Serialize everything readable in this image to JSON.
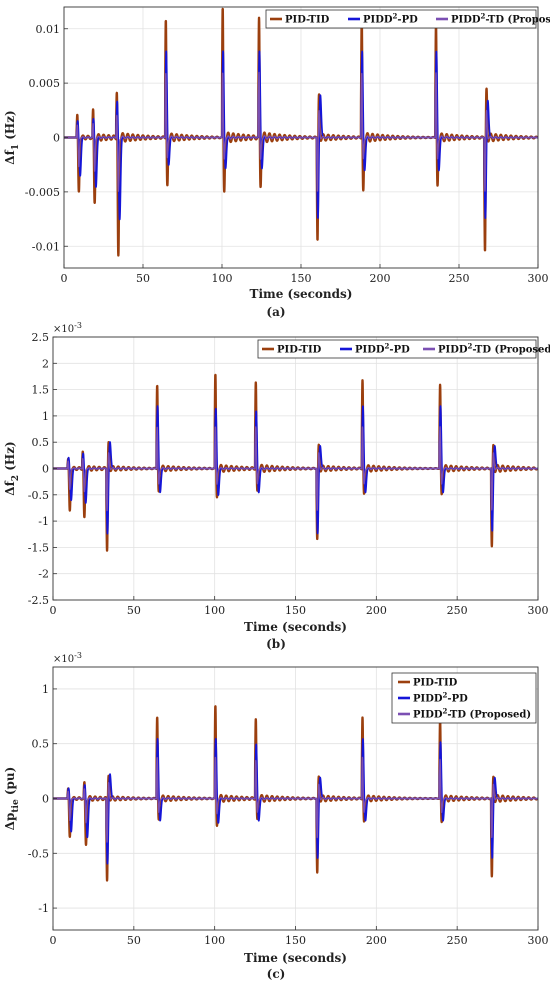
{
  "colors": {
    "PID-TID": "#9b3f0e",
    "PIDD2-PD": "#1515d8",
    "PIDD2-TD": "#7b4fb3"
  },
  "chart_data": [
    {
      "type": "line",
      "caption": "(a)",
      "xlabel": "Time (seconds)",
      "ylabel_main": "Δf",
      "ylabel_sub": "1",
      "ylabel_unit": " (Hz)",
      "exponent_label": "",
      "xlim": [
        0,
        300
      ],
      "ylim": [
        -0.012,
        0.012
      ],
      "xticks": [
        0,
        50,
        100,
        150,
        200,
        250,
        300
      ],
      "yticks": [
        -0.01,
        -0.005,
        0,
        0.005,
        0.01
      ],
      "ytick_labels": [
        "-0.01",
        "-0.005",
        "0",
        "0.005",
        "0.01"
      ],
      "legend": {
        "placement": "top-right-row",
        "entries": [
          {
            "key": "PID-TID",
            "text": "PID-TID",
            "sup": "",
            "rest": ""
          },
          {
            "key": "PIDD2-PD",
            "text": "PIDD",
            "sup": "2",
            "rest": "-PD"
          },
          {
            "key": "PIDD2-TD",
            "text": "PIDD",
            "sup": "2",
            "rest": "-TD (Proposed)"
          }
        ]
      },
      "events": [
        {
          "t": 8,
          "s": 1,
          "peak": {
            "PID-TID": 0.0022,
            "PIDD2-PD": 0.0016,
            "PIDD2-TD": 0.0012
          },
          "trough": {
            "PID-TID": -0.005,
            "PIDD2-PD": -0.0035,
            "PIDD2-TD": -0.0027
          }
        },
        {
          "t": 18,
          "s": 1,
          "peak": {
            "PID-TID": 0.0026,
            "PIDD2-PD": 0.0018,
            "PIDD2-TD": 0.0013
          },
          "trough": {
            "PID-TID": -0.006,
            "PIDD2-PD": -0.0045,
            "PIDD2-TD": -0.0031
          }
        },
        {
          "t": 33,
          "s": 1,
          "peak": {
            "PID-TID": 0.0045,
            "PIDD2-PD": 0.0035,
            "PIDD2-TD": 0.0022
          },
          "trough": {
            "PID-TID": -0.011,
            "PIDD2-PD": -0.0075,
            "PIDD2-TD": -0.005
          }
        },
        {
          "t": 64,
          "s": 1,
          "peak": {
            "PID-TID": 0.011,
            "PIDD2-PD": 0.008,
            "PIDD2-TD": 0.006
          },
          "trough": {
            "PID-TID": -0.0045,
            "PIDD2-PD": -0.0025,
            "PIDD2-TD": -0.0019
          }
        },
        {
          "t": 100,
          "s": 1,
          "peak": {
            "PID-TID": 0.012,
            "PIDD2-PD": 0.008,
            "PIDD2-TD": 0.006
          },
          "trough": {
            "PID-TID": -0.005,
            "PIDD2-PD": -0.0028,
            "PIDD2-TD": -0.002
          }
        },
        {
          "t": 123,
          "s": 1,
          "peak": {
            "PID-TID": 0.011,
            "PIDD2-PD": 0.008,
            "PIDD2-TD": 0.006
          },
          "trough": {
            "PID-TID": -0.0045,
            "PIDD2-PD": -0.0028,
            "PIDD2-TD": -0.002
          }
        },
        {
          "t": 160,
          "s": -1,
          "peak": {
            "PID-TID": 0.004,
            "PIDD2-PD": 0.004,
            "PIDD2-TD": 0.0025
          },
          "trough": {
            "PID-TID": -0.0095,
            "PIDD2-PD": -0.0075,
            "PIDD2-TD": -0.005
          }
        },
        {
          "t": 188,
          "s": 1,
          "peak": {
            "PID-TID": 0.011,
            "PIDD2-PD": 0.008,
            "PIDD2-TD": 0.006
          },
          "trough": {
            "PID-TID": -0.005,
            "PIDD2-PD": -0.003,
            "PIDD2-TD": -0.002
          }
        },
        {
          "t": 235,
          "s": 1,
          "peak": {
            "PID-TID": 0.0105,
            "PIDD2-PD": 0.008,
            "PIDD2-TD": 0.006
          },
          "trough": {
            "PID-TID": -0.0045,
            "PIDD2-PD": -0.003,
            "PIDD2-TD": -0.002
          }
        },
        {
          "t": 266,
          "s": -1,
          "peak": {
            "PID-TID": 0.0045,
            "PIDD2-PD": 0.0035,
            "PIDD2-TD": 0.0025
          },
          "trough": {
            "PID-TID": -0.0105,
            "PIDD2-PD": -0.0075,
            "PIDD2-TD": -0.005
          }
        }
      ]
    },
    {
      "type": "line",
      "caption": "(b)",
      "xlabel": "Time (seconds)",
      "ylabel_main": "Δf",
      "ylabel_sub": "2",
      "ylabel_unit": " (Hz)",
      "exponent_label": "×10",
      "exponent_power": "-3",
      "xlim": [
        0,
        300
      ],
      "ylim": [
        -2.5,
        2.5
      ],
      "xticks": [
        0,
        50,
        100,
        150,
        200,
        250,
        300
      ],
      "yticks": [
        -2.5,
        -2,
        -1.5,
        -1,
        -0.5,
        0,
        0.5,
        1,
        1.5,
        2,
        2.5
      ],
      "ytick_labels": [
        "-2.5",
        "-2",
        "-1.5",
        "-1",
        "-0.5",
        "0",
        "0.5",
        "1",
        "1.5",
        "2",
        "2.5"
      ],
      "legend": {
        "placement": "top-right-row",
        "entries": [
          {
            "key": "PID-TID",
            "text": "PID-TID",
            "sup": "",
            "rest": ""
          },
          {
            "key": "PIDD2-PD",
            "text": "PIDD",
            "sup": "2",
            "rest": "-PD"
          },
          {
            "key": "PIDD2-TD",
            "text": "PIDD",
            "sup": "2",
            "rest": "-TD (Proposed)"
          }
        ]
      },
      "events": [
        {
          "t": 9,
          "s": 1,
          "peak": {
            "PID-TID": 0.2,
            "PIDD2-PD": 0.22,
            "PIDD2-TD": 0.15
          },
          "trough": {
            "PID-TID": -0.8,
            "PIDD2-PD": -0.6,
            "PIDD2-TD": -0.4
          }
        },
        {
          "t": 18,
          "s": 1,
          "peak": {
            "PID-TID": 0.35,
            "PIDD2-PD": 0.3,
            "PIDD2-TD": 0.2
          },
          "trough": {
            "PID-TID": -0.95,
            "PIDD2-PD": -0.65,
            "PIDD2-TD": -0.45
          }
        },
        {
          "t": 33,
          "s": -1,
          "peak": {
            "PID-TID": 0.5,
            "PIDD2-PD": 0.52,
            "PIDD2-TD": 0.3
          },
          "trough": {
            "PID-TID": -1.55,
            "PIDD2-PD": -1.25,
            "PIDD2-TD": -0.8
          }
        },
        {
          "t": 64,
          "s": 1,
          "peak": {
            "PID-TID": 1.6,
            "PIDD2-PD": 1.2,
            "PIDD2-TD": 0.8
          },
          "trough": {
            "PID-TID": -0.45,
            "PIDD2-PD": -0.45,
            "PIDD2-TD": -0.3
          }
        },
        {
          "t": 100,
          "s": 1,
          "peak": {
            "PID-TID": 1.8,
            "PIDD2-PD": 1.15,
            "PIDD2-TD": 0.8
          },
          "trough": {
            "PID-TID": -0.55,
            "PIDD2-PD": -0.5,
            "PIDD2-TD": -0.3
          }
        },
        {
          "t": 125,
          "s": 1,
          "peak": {
            "PID-TID": 1.65,
            "PIDD2-PD": 1.1,
            "PIDD2-TD": 0.8
          },
          "trough": {
            "PID-TID": -0.45,
            "PIDD2-PD": -0.45,
            "PIDD2-TD": -0.3
          }
        },
        {
          "t": 163,
          "s": -1,
          "peak": {
            "PID-TID": 0.45,
            "PIDD2-PD": 0.45,
            "PIDD2-TD": 0.3
          },
          "trough": {
            "PID-TID": -1.35,
            "PIDD2-PD": -1.25,
            "PIDD2-TD": -0.8
          }
        },
        {
          "t": 191,
          "s": 1,
          "peak": {
            "PID-TID": 1.7,
            "PIDD2-PD": 1.2,
            "PIDD2-TD": 0.8
          },
          "trough": {
            "PID-TID": -0.5,
            "PIDD2-PD": -0.45,
            "PIDD2-TD": -0.3
          }
        },
        {
          "t": 239,
          "s": 1,
          "peak": {
            "PID-TID": 1.6,
            "PIDD2-PD": 1.2,
            "PIDD2-TD": 0.8
          },
          "trough": {
            "PID-TID": -0.5,
            "PIDD2-PD": -0.45,
            "PIDD2-TD": -0.3
          }
        },
        {
          "t": 271,
          "s": -1,
          "peak": {
            "PID-TID": 0.45,
            "PIDD2-PD": 0.45,
            "PIDD2-TD": 0.3
          },
          "trough": {
            "PID-TID": -1.5,
            "PIDD2-PD": -1.2,
            "PIDD2-TD": -0.8
          }
        }
      ]
    },
    {
      "type": "line",
      "caption": "(c)",
      "xlabel": "Time (seconds)",
      "ylabel_main": "Δp",
      "ylabel_sub": "tie",
      "ylabel_unit": " (pu)",
      "exponent_label": "×10",
      "exponent_power": "-3",
      "xlim": [
        0,
        300
      ],
      "ylim": [
        -1.2,
        1.2
      ],
      "xticks": [
        0,
        50,
        100,
        150,
        200,
        250,
        300
      ],
      "yticks": [
        -1,
        -0.5,
        0,
        0.5,
        1
      ],
      "ytick_labels": [
        "-1",
        "-0.5",
        "0",
        "0.5",
        "1"
      ],
      "legend": {
        "placement": "top-right-column",
        "entries": [
          {
            "key": "PID-TID",
            "text": "PID-TID",
            "sup": "",
            "rest": ""
          },
          {
            "key": "PIDD2-PD",
            "text": "PIDD",
            "sup": "2",
            "rest": "-PD"
          },
          {
            "key": "PIDD2-TD",
            "text": "PIDD",
            "sup": "2",
            "rest": "-TD (Proposed)"
          }
        ]
      },
      "events": [
        {
          "t": 9,
          "s": 1,
          "peak": {
            "PID-TID": 0.1,
            "PIDD2-PD": 0.1,
            "PIDD2-TD": 0.07
          },
          "trough": {
            "PID-TID": -0.35,
            "PIDD2-PD": -0.3,
            "PIDD2-TD": -0.2
          }
        },
        {
          "t": 19,
          "s": 1,
          "peak": {
            "PID-TID": 0.15,
            "PIDD2-PD": 0.13,
            "PIDD2-TD": 0.09
          },
          "trough": {
            "PID-TID": -0.42,
            "PIDD2-PD": -0.35,
            "PIDD2-TD": -0.22
          }
        },
        {
          "t": 33,
          "s": -1,
          "peak": {
            "PID-TID": 0.22,
            "PIDD2-PD": 0.23,
            "PIDD2-TD": 0.15
          },
          "trough": {
            "PID-TID": -0.75,
            "PIDD2-PD": -0.6,
            "PIDD2-TD": -0.4
          }
        },
        {
          "t": 64,
          "s": 1,
          "peak": {
            "PID-TID": 0.75,
            "PIDD2-PD": 0.55,
            "PIDD2-TD": 0.38
          },
          "trough": {
            "PID-TID": -0.2,
            "PIDD2-PD": -0.2,
            "PIDD2-TD": -0.13
          }
        },
        {
          "t": 100,
          "s": 1,
          "peak": {
            "PID-TID": 0.85,
            "PIDD2-PD": 0.55,
            "PIDD2-TD": 0.38
          },
          "trough": {
            "PID-TID": -0.25,
            "PIDD2-PD": -0.22,
            "PIDD2-TD": -0.14
          }
        },
        {
          "t": 125,
          "s": 1,
          "peak": {
            "PID-TID": 0.73,
            "PIDD2-PD": 0.5,
            "PIDD2-TD": 0.35
          },
          "trough": {
            "PID-TID": -0.2,
            "PIDD2-PD": -0.2,
            "PIDD2-TD": -0.13
          }
        },
        {
          "t": 163,
          "s": -1,
          "peak": {
            "PID-TID": 0.2,
            "PIDD2-PD": 0.2,
            "PIDD2-TD": 0.13
          },
          "trough": {
            "PID-TID": -0.68,
            "PIDD2-PD": -0.55,
            "PIDD2-TD": -0.36
          }
        },
        {
          "t": 191,
          "s": 1,
          "peak": {
            "PID-TID": 0.75,
            "PIDD2-PD": 0.55,
            "PIDD2-TD": 0.38
          },
          "trough": {
            "PID-TID": -0.22,
            "PIDD2-PD": -0.2,
            "PIDD2-TD": -0.13
          }
        },
        {
          "t": 239,
          "s": 1,
          "peak": {
            "PID-TID": 0.72,
            "PIDD2-PD": 0.52,
            "PIDD2-TD": 0.36
          },
          "trough": {
            "PID-TID": -0.22,
            "PIDD2-PD": -0.2,
            "PIDD2-TD": -0.13
          }
        },
        {
          "t": 271,
          "s": -1,
          "peak": {
            "PID-TID": 0.2,
            "PIDD2-PD": 0.2,
            "PIDD2-TD": 0.13
          },
          "trough": {
            "PID-TID": -0.72,
            "PIDD2-PD": -0.55,
            "PIDD2-TD": -0.36
          }
        }
      ]
    }
  ]
}
